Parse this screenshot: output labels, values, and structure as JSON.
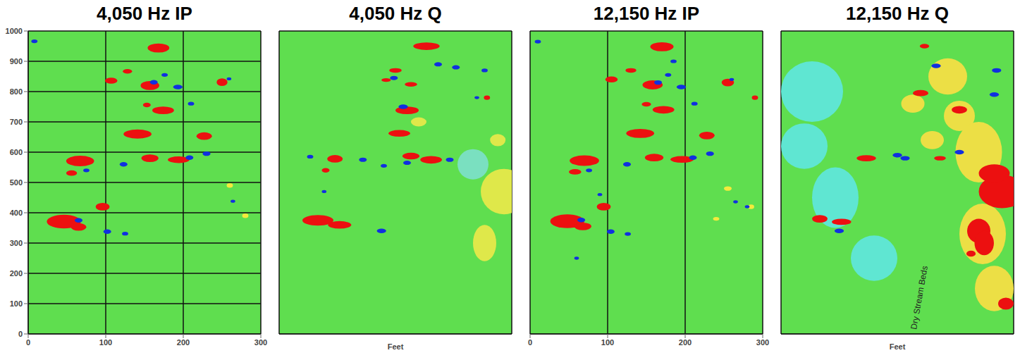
{
  "chart_data": [
    {
      "type": "scatter",
      "title": "4,050 Hz IP",
      "xlim": [
        0,
        300
      ],
      "ylim": [
        0,
        1000
      ],
      "xticks": [
        0,
        100,
        200,
        300
      ],
      "yticks": [
        0,
        100,
        200,
        300,
        400,
        500,
        600,
        700,
        800,
        900,
        1000
      ],
      "grid": true,
      "color": "#5fde4f",
      "series": [
        {
          "color": "#f4ea3c",
          "x": [
            260,
            280
          ],
          "y": [
            490,
            390
          ],
          "w": [
            8,
            8
          ],
          "h": [
            15,
            15
          ]
        },
        {
          "color": "#ec1010",
          "x": [
            168,
            128,
            107,
            157,
            250,
            153,
            174,
            141,
            227,
            67,
            56,
            157,
            194,
            96,
            46,
            65
          ],
          "y": [
            944,
            867,
            836,
            820,
            831,
            756,
            738,
            660,
            653,
            571,
            531,
            580,
            575,
            420,
            371,
            353
          ],
          "w": [
            28,
            12,
            16,
            24,
            14,
            10,
            28,
            36,
            20,
            36,
            14,
            22,
            28,
            18,
            44,
            20
          ],
          "h": [
            30,
            15,
            20,
            30,
            25,
            15,
            25,
            30,
            25,
            35,
            18,
            25,
            22,
            25,
            45,
            25
          ]
        },
        {
          "color": "#1030e0",
          "x": [
            8,
            162,
            193,
            176,
            259,
            123,
            208,
            65,
            102,
            125,
            264,
            210,
            75,
            230
          ],
          "y": [
            966,
            831,
            815,
            855,
            842,
            560,
            582,
            375,
            338,
            331,
            438,
            760,
            540,
            595
          ],
          "w": [
            8,
            10,
            12,
            8,
            6,
            10,
            10,
            10,
            10,
            8,
            6,
            8,
            8,
            10
          ],
          "h": [
            12,
            15,
            15,
            12,
            10,
            15,
            15,
            15,
            15,
            12,
            10,
            12,
            12,
            15
          ]
        }
      ]
    },
    {
      "type": "scatter",
      "title": "4,050 Hz Q",
      "xlim": [
        0,
        300
      ],
      "ylim": [
        0,
        1000
      ],
      "xticks": [
        0,
        100,
        200,
        300
      ],
      "yticks": [
        0,
        100,
        200,
        300,
        400,
        500,
        600,
        700,
        800,
        900,
        1000
      ],
      "grid": true,
      "tick_labels": false,
      "x_label": "Feet",
      "color": "#5fde4f",
      "series": [
        {
          "color": "#dfe84a",
          "x": [
            290,
            265,
            282,
            180
          ],
          "y": [
            470,
            300,
            640,
            700
          ],
          "w": [
            60,
            30,
            20,
            20
          ],
          "h": [
            150,
            120,
            40,
            30
          ]
        },
        {
          "color": "#7ae0c0",
          "x": [
            250
          ],
          "y": [
            560
          ],
          "w": [
            40
          ],
          "h": [
            100
          ]
        },
        {
          "color": "#ec1010",
          "x": [
            190,
            150,
            138,
            170,
            165,
            155,
            72,
            60,
            170,
            196,
            50,
            78,
            268
          ],
          "y": [
            950,
            870,
            838,
            824,
            738,
            662,
            578,
            540,
            587,
            575,
            375,
            360,
            780
          ],
          "w": [
            34,
            16,
            12,
            16,
            30,
            28,
            20,
            10,
            22,
            28,
            40,
            30,
            8
          ],
          "h": [
            25,
            15,
            12,
            15,
            25,
            22,
            25,
            15,
            22,
            25,
            35,
            25,
            15
          ]
        },
        {
          "color": "#1030e0",
          "x": [
            205,
            228,
            265,
            148,
            160,
            40,
            108,
            135,
            58,
            165,
            220,
            132,
            255
          ],
          "y": [
            890,
            880,
            870,
            845,
            750,
            585,
            575,
            555,
            470,
            565,
            575,
            340,
            780
          ],
          "w": [
            10,
            10,
            8,
            10,
            12,
            8,
            10,
            8,
            6,
            10,
            10,
            12,
            6
          ],
          "h": [
            14,
            14,
            12,
            14,
            15,
            12,
            14,
            12,
            10,
            14,
            14,
            15,
            10
          ]
        }
      ]
    },
    {
      "type": "scatter",
      "title": "12,150 Hz IP",
      "xlim": [
        0,
        300
      ],
      "ylim": [
        0,
        1000
      ],
      "xticks": [
        0,
        100,
        200,
        300
      ],
      "yticks": [
        0,
        100,
        200,
        300,
        400,
        500,
        600,
        700,
        800,
        900,
        1000
      ],
      "grid": true,
      "tick_labels": "x",
      "color": "#5fde4f",
      "series": [
        {
          "color": "#f4ea3c",
          "x": [
            255,
            285,
            240
          ],
          "y": [
            480,
            420,
            380
          ],
          "w": [
            10,
            8,
            8
          ],
          "h": [
            15,
            15,
            12
          ]
        },
        {
          "color": "#ec1010",
          "x": [
            170,
            130,
            105,
            158,
            255,
            150,
            172,
            142,
            228,
            70,
            58,
            160,
            196,
            95,
            48,
            68,
            290
          ],
          "y": [
            948,
            870,
            840,
            822,
            830,
            758,
            740,
            662,
            655,
            572,
            535,
            582,
            576,
            420,
            372,
            355,
            780
          ],
          "w": [
            30,
            14,
            16,
            26,
            16,
            12,
            28,
            36,
            20,
            38,
            16,
            24,
            30,
            18,
            44,
            22,
            8
          ],
          "h": [
            30,
            15,
            20,
            30,
            25,
            15,
            25,
            30,
            25,
            35,
            18,
            25,
            22,
            25,
            45,
            25,
            15
          ]
        },
        {
          "color": "#1030e0",
          "x": [
            10,
            165,
            195,
            178,
            260,
            125,
            210,
            66,
            104,
            126,
            265,
            212,
            76,
            232,
            90,
            280,
            60,
            185
          ],
          "y": [
            965,
            830,
            815,
            855,
            840,
            560,
            582,
            376,
            338,
            330,
            436,
            760,
            540,
            595,
            460,
            420,
            250,
            900
          ],
          "w": [
            8,
            10,
            12,
            8,
            6,
            10,
            10,
            10,
            10,
            8,
            6,
            8,
            8,
            10,
            6,
            6,
            6,
            8
          ],
          "h": [
            12,
            15,
            15,
            12,
            10,
            15,
            15,
            15,
            15,
            12,
            10,
            12,
            12,
            15,
            10,
            10,
            10,
            12
          ]
        }
      ]
    },
    {
      "type": "scatter",
      "title": "12,150 Hz Q",
      "xlim": [
        0,
        300
      ],
      "ylim": [
        0,
        1000
      ],
      "xticks": [
        0,
        100,
        200,
        300
      ],
      "yticks": [
        0,
        100,
        200,
        300,
        400,
        500,
        600,
        700,
        800,
        900,
        1000
      ],
      "grid": true,
      "tick_labels": false,
      "x_label": "Feet",
      "color": "#5fde4f",
      "annotations": [
        {
          "text": "Dry Stream Beds",
          "x": 178,
          "y": 120
        }
      ],
      "series": [
        {
          "color": "#5fe6d2",
          "x": [
            40,
            30,
            120,
            70
          ],
          "y": [
            800,
            620,
            250,
            450
          ],
          "w": [
            80,
            60,
            60,
            60
          ],
          "h": [
            200,
            150,
            150,
            200
          ]
        },
        {
          "color": "#ecdf45",
          "x": [
            215,
            230,
            255,
            170,
            195,
            260,
            275
          ],
          "y": [
            850,
            720,
            600,
            760,
            640,
            330,
            150
          ],
          "w": [
            50,
            40,
            60,
            30,
            30,
            60,
            50
          ],
          "h": [
            120,
            100,
            200,
            60,
            60,
            200,
            150
          ]
        },
        {
          "color": "#ec1010",
          "x": [
            285,
            255,
            262,
            275,
            230,
            180,
            110,
            50,
            78,
            205,
            185,
            290,
            245
          ],
          "y": [
            470,
            340,
            300,
            530,
            740,
            795,
            580,
            380,
            370,
            580,
            950,
            100,
            265
          ],
          "w": [
            60,
            30,
            25,
            40,
            20,
            20,
            25,
            20,
            25,
            15,
            12,
            20,
            12
          ],
          "h": [
            110,
            80,
            80,
            60,
            25,
            20,
            20,
            25,
            20,
            15,
            15,
            40,
            20
          ]
        },
        {
          "color": "#1030e0",
          "x": [
            75,
            150,
            200,
            278,
            230,
            160,
            275
          ],
          "y": [
            340,
            590,
            885,
            870,
            600,
            580,
            790
          ],
          "w": [
            12,
            12,
            12,
            12,
            12,
            12,
            12
          ],
          "h": [
            15,
            15,
            15,
            15,
            15,
            15,
            15
          ]
        }
      ]
    }
  ]
}
